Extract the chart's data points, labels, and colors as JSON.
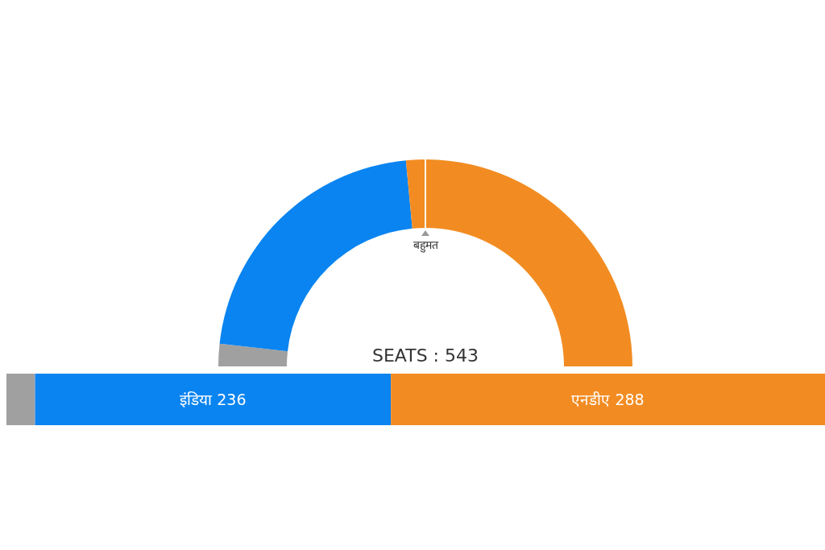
{
  "chart_data": [
    {
      "type": "donut",
      "categories": [
        null,
        null,
        null
      ],
      "values": [
        3.5,
        43.5,
        53.0
      ],
      "colors": [
        "#a0a0a0",
        "#0a84f0",
        "#f28c22"
      ],
      "annotations": [
        "SEATS : 543",
        "बहुमत"
      ]
    },
    {
      "type": "bar",
      "orientation": "horizontal",
      "stacked": true,
      "categories": [
        null
      ],
      "series": [
        {
          "color": "#a0a0a0",
          "values": [
            19
          ],
          "value_labels": [
            null
          ]
        },
        {
          "color": "#0a84f0",
          "values": [
            236
          ],
          "value_labels": [
            "इंडिया 236"
          ]
        },
        {
          "color": "#f28c22",
          "values": [
            288
          ],
          "value_labels": [
            "एनडीए 288"
          ]
        }
      ]
    }
  ]
}
